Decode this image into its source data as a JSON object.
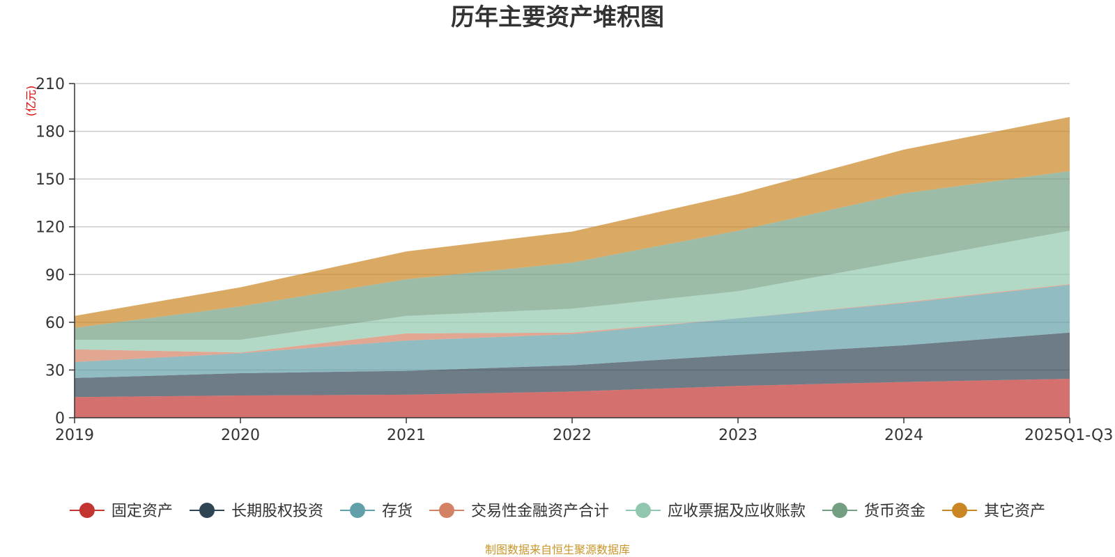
{
  "chart_data": {
    "type": "area",
    "stacked": true,
    "title": "历年主要资产堆积图",
    "unit_label": "(亿元)",
    "categories": [
      "2019",
      "2020",
      "2021",
      "2022",
      "2023",
      "2024",
      "2025Q1-Q3"
    ],
    "yticks": [
      "0",
      "30",
      "60",
      "90",
      "120",
      "150",
      "180",
      "210"
    ],
    "ylim": [
      0,
      210
    ],
    "grid": true,
    "legend_position": "bottom",
    "series": [
      {
        "name": "固定资产",
        "color": "#c23531",
        "values": [
          13,
          14,
          14.5,
          16.5,
          20,
          22.5,
          24.5
        ]
      },
      {
        "name": "长期股权投资",
        "color": "#2f4554",
        "values": [
          12,
          14,
          15,
          16.5,
          19.5,
          23,
          29
        ]
      },
      {
        "name": "存货",
        "color": "#61a0a8",
        "values": [
          10,
          12.5,
          19,
          19.5,
          23,
          26.5,
          30
        ]
      },
      {
        "name": "交易性金融资产合计",
        "color": "#d48265",
        "values": [
          8,
          0.5,
          4.5,
          1,
          0,
          0.5,
          0.5
        ]
      },
      {
        "name": "应收票据及应收账款",
        "color": "#91c7ae",
        "values": [
          6,
          8,
          11,
          15,
          17,
          26,
          33.5
        ]
      },
      {
        "name": "货币资金",
        "color": "#749f83",
        "values": [
          7.5,
          21,
          23,
          29,
          38,
          42.5,
          37.5
        ]
      },
      {
        "name": "其它资产",
        "color": "#ca8622",
        "values": [
          7.5,
          12,
          17.5,
          19.5,
          23,
          27.5,
          34
        ]
      }
    ],
    "source_note": "制图数据来自恒生聚源数据库"
  }
}
